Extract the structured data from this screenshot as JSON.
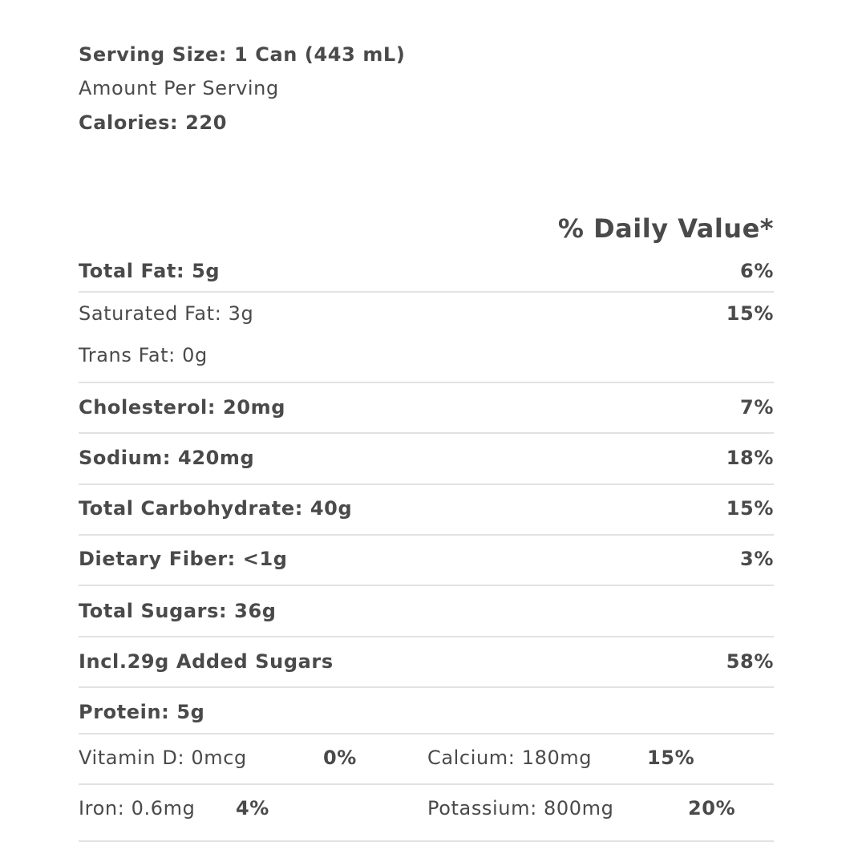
{
  "header": {
    "serving_size": "Serving Size: 1 Can (443 mL)",
    "amount_per_serving": "Amount Per Serving",
    "calories": "Calories: 220"
  },
  "daily_value_header": "% Daily Value*",
  "rows": [
    {
      "label": "Total Fat: 5g",
      "dv": "6%",
      "bold": true
    },
    {
      "label": "Saturated Fat: 3g",
      "dv": "15%",
      "bold": false
    },
    {
      "label": "Trans Fat: 0g",
      "dv": "",
      "bold": false
    },
    {
      "label": "Cholesterol: 20mg",
      "dv": "7%",
      "bold": true
    },
    {
      "label": "Sodium: 420mg",
      "dv": "18%",
      "bold": true
    },
    {
      "label": "Total Carbohydrate: 40g",
      "dv": "15%",
      "bold": true
    },
    {
      "label": "Dietary Fiber: <1g",
      "dv": "3%",
      "bold": true
    },
    {
      "label": "Total Sugars: 36g",
      "dv": "",
      "bold": true
    },
    {
      "label": "Incl.29g Added Sugars",
      "dv": "58%",
      "bold": true
    },
    {
      "label": "Protein: 5g",
      "dv": "",
      "bold": true
    }
  ],
  "micros": [
    {
      "label": "Vitamin D: 0mcg",
      "dv": "0%"
    },
    {
      "label": "Calcium: 180mg",
      "dv": "15%"
    },
    {
      "label": "Iron: 0.6mg",
      "dv": "4%"
    },
    {
      "label": "Potassium: 800mg",
      "dv": "20%"
    }
  ],
  "colors": {
    "text": "#4a4a4a",
    "divider": "#e2e2e2"
  }
}
